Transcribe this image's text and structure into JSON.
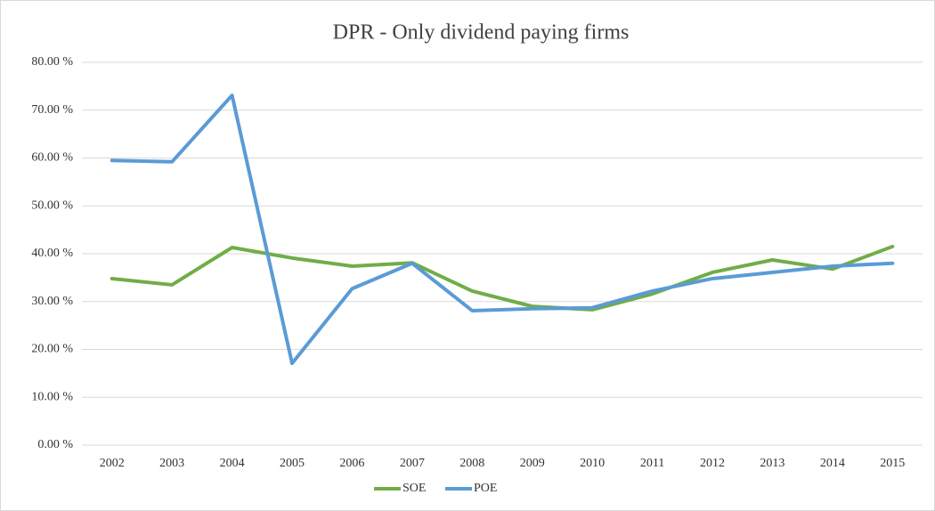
{
  "chart_data": {
    "type": "line",
    "title": "DPR - Only dividend paying firms",
    "categories": [
      "2002",
      "2003",
      "2004",
      "2005",
      "2006",
      "2007",
      "2008",
      "2009",
      "2010",
      "2011",
      "2012",
      "2013",
      "2014",
      "2015"
    ],
    "series": [
      {
        "name": "SOE",
        "color": "#70ad47",
        "values": [
          34.8,
          33.5,
          41.3,
          39.1,
          37.4,
          38.1,
          32.2,
          29.0,
          28.3,
          31.6,
          36.1,
          38.7,
          36.8,
          41.5
        ]
      },
      {
        "name": "POE",
        "color": "#5b9bd5",
        "values": [
          59.5,
          59.2,
          73.1,
          17.1,
          32.7,
          38.0,
          28.1,
          28.5,
          28.7,
          32.2,
          34.8,
          36.1,
          37.4,
          38.0
        ]
      }
    ],
    "ylim": [
      0,
      80
    ],
    "yticks": [
      {
        "value": 0,
        "label": "0.00 %"
      },
      {
        "value": 10,
        "label": "10.00 %"
      },
      {
        "value": 20,
        "label": "20.00 %"
      },
      {
        "value": 30,
        "label": "30.00 %"
      },
      {
        "value": 40,
        "label": "40.00 %"
      },
      {
        "value": 50,
        "label": "50.00 %"
      },
      {
        "value": 60,
        "label": "60.00 %"
      },
      {
        "value": 70,
        "label": "70.00 %"
      },
      {
        "value": 80,
        "label": "80.00 %"
      }
    ],
    "grid": true,
    "legend": "bottom"
  }
}
